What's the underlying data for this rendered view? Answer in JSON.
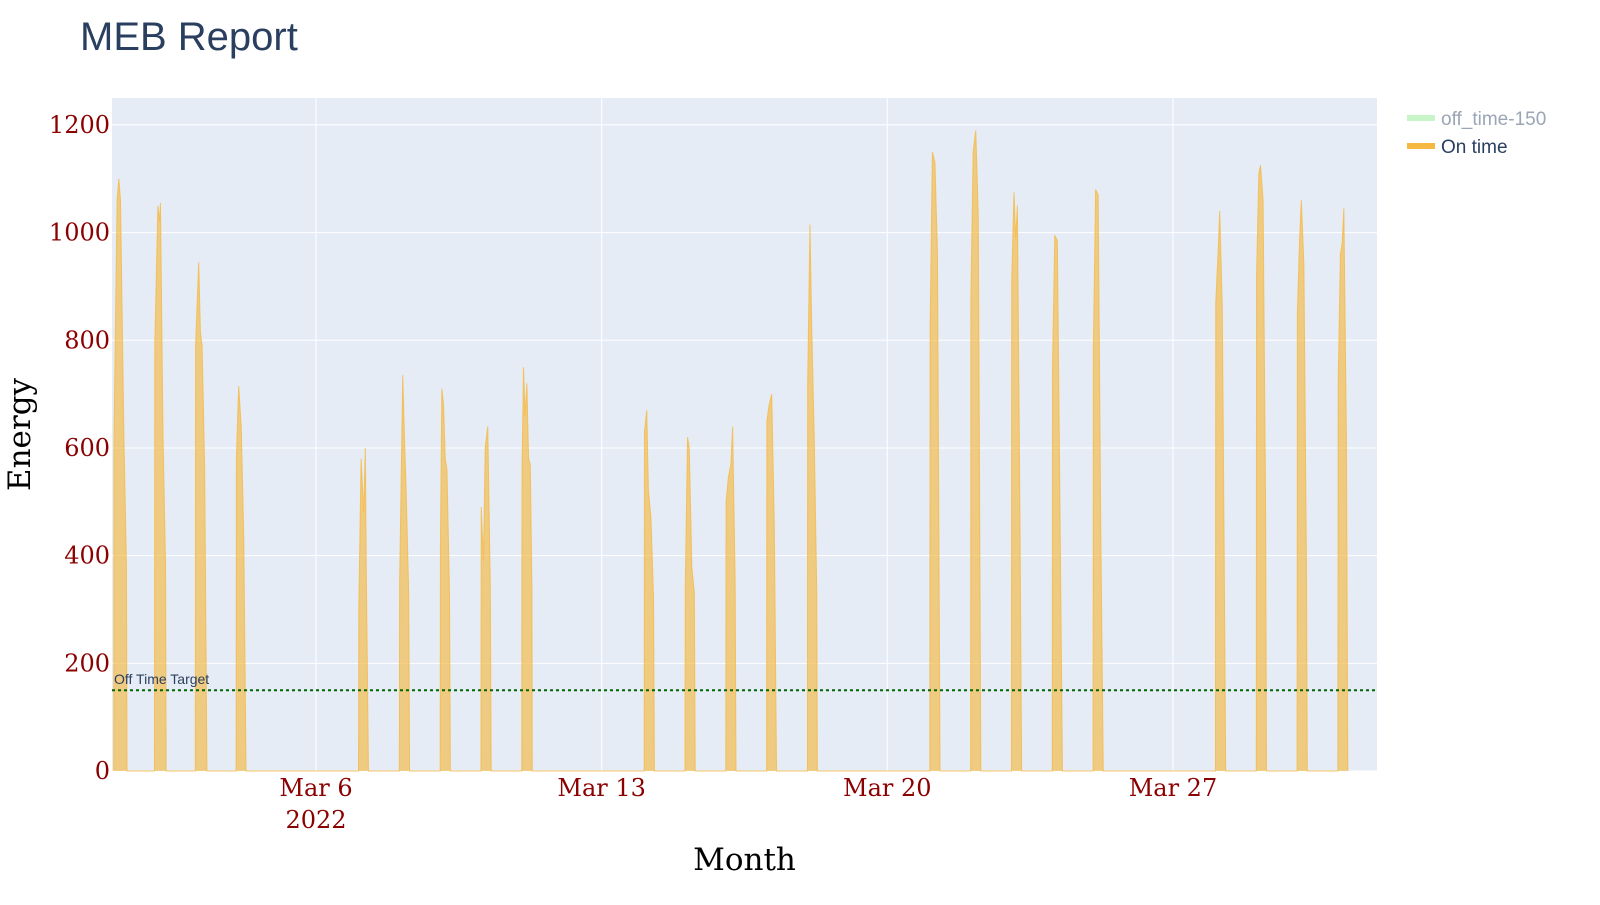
{
  "chart_data": {
    "type": "area",
    "title": "MEB Report",
    "xlabel": "Month",
    "ylabel": "Energy",
    "x_range": [
      "2022-03-01T00:00",
      "2022-04-01T00:00"
    ],
    "ylim": [
      0,
      1250
    ],
    "y_ticks": [
      0,
      200,
      400,
      600,
      800,
      1000,
      1200
    ],
    "x_ticks": [
      {
        "date": "2022-03-06",
        "label": "Mar 6",
        "sublabel": "2022"
      },
      {
        "date": "2022-03-13",
        "label": "Mar 13",
        "sublabel": ""
      },
      {
        "date": "2022-03-20",
        "label": "Mar 20",
        "sublabel": ""
      },
      {
        "date": "2022-03-27",
        "label": "Mar 27",
        "sublabel": ""
      }
    ],
    "grid": true,
    "legend_position": "top-right",
    "series": [
      {
        "name": "off_time-150",
        "color": "#c8f5c8",
        "legend_only": true,
        "values": []
      },
      {
        "name": "On time",
        "color": "#f5b942",
        "points": [
          [
            "2022-03-01T01:00",
            0
          ],
          [
            "2022-03-01T01:10",
            620
          ],
          [
            "2022-03-01T03:00",
            1060
          ],
          [
            "2022-03-01T04:00",
            1100
          ],
          [
            "2022-03-01T05:00",
            1060
          ],
          [
            "2022-03-01T07:00",
            620
          ],
          [
            "2022-03-01T08:30",
            380
          ],
          [
            "2022-03-01T08:50",
            0
          ],
          [
            "2022-03-02T01:00",
            0
          ],
          [
            "2022-03-02T01:10",
            790
          ],
          [
            "2022-03-02T03:00",
            1050
          ],
          [
            "2022-03-02T04:00",
            1020
          ],
          [
            "2022-03-02T04:30",
            1055
          ],
          [
            "2022-03-02T06:00",
            620
          ],
          [
            "2022-03-02T07:30",
            380
          ],
          [
            "2022-03-02T07:50",
            0
          ],
          [
            "2022-03-03T01:00",
            0
          ],
          [
            "2022-03-03T01:10",
            790
          ],
          [
            "2022-03-03T03:00",
            945
          ],
          [
            "2022-03-03T04:00",
            815
          ],
          [
            "2022-03-03T05:00",
            790
          ],
          [
            "2022-03-03T06:30",
            560
          ],
          [
            "2022-03-03T07:50",
            0
          ],
          [
            "2022-03-04T01:00",
            0
          ],
          [
            "2022-03-04T01:10",
            580
          ],
          [
            "2022-03-04T02:30",
            715
          ],
          [
            "2022-03-04T04:00",
            640
          ],
          [
            "2022-03-04T05:30",
            430
          ],
          [
            "2022-03-04T06:50",
            0
          ],
          [
            "2022-03-07T01:00",
            0
          ],
          [
            "2022-03-07T01:10",
            300
          ],
          [
            "2022-03-07T02:30",
            580
          ],
          [
            "2022-03-07T04:00",
            480
          ],
          [
            "2022-03-07T05:00",
            600
          ],
          [
            "2022-03-07T05:30",
            390
          ],
          [
            "2022-03-07T06:50",
            0
          ],
          [
            "2022-03-08T01:00",
            0
          ],
          [
            "2022-03-08T01:10",
            350
          ],
          [
            "2022-03-08T03:00",
            735
          ],
          [
            "2022-03-08T04:00",
            620
          ],
          [
            "2022-03-08T05:00",
            520
          ],
          [
            "2022-03-08T06:30",
            330
          ],
          [
            "2022-03-08T07:00",
            0
          ],
          [
            "2022-03-09T01:00",
            0
          ],
          [
            "2022-03-09T01:10",
            420
          ],
          [
            "2022-03-09T02:00",
            710
          ],
          [
            "2022-03-09T03:00",
            680
          ],
          [
            "2022-03-09T04:00",
            580
          ],
          [
            "2022-03-09T05:00",
            560
          ],
          [
            "2022-03-09T06:30",
            330
          ],
          [
            "2022-03-09T07:00",
            0
          ],
          [
            "2022-03-10T01:00",
            0
          ],
          [
            "2022-03-10T01:10",
            490
          ],
          [
            "2022-03-10T02:30",
            390
          ],
          [
            "2022-03-10T03:30",
            600
          ],
          [
            "2022-03-10T05:00",
            640
          ],
          [
            "2022-03-10T06:30",
            340
          ],
          [
            "2022-03-10T07:00",
            0
          ],
          [
            "2022-03-11T01:00",
            0
          ],
          [
            "2022-03-11T01:10",
            560
          ],
          [
            "2022-03-11T02:00",
            750
          ],
          [
            "2022-03-11T03:00",
            660
          ],
          [
            "2022-03-11T04:00",
            720
          ],
          [
            "2022-03-11T05:00",
            580
          ],
          [
            "2022-03-11T06:00",
            570
          ],
          [
            "2022-03-11T07:00",
            330
          ],
          [
            "2022-03-11T07:10",
            0
          ],
          [
            "2022-03-14T01:00",
            0
          ],
          [
            "2022-03-14T01:10",
            630
          ],
          [
            "2022-03-14T02:30",
            670
          ],
          [
            "2022-03-14T03:30",
            520
          ],
          [
            "2022-03-14T05:00",
            470
          ],
          [
            "2022-03-14T06:30",
            320
          ],
          [
            "2022-03-14T07:00",
            0
          ],
          [
            "2022-03-15T01:00",
            0
          ],
          [
            "2022-03-15T01:10",
            340
          ],
          [
            "2022-03-15T02:30",
            620
          ],
          [
            "2022-03-15T03:30",
            600
          ],
          [
            "2022-03-15T05:00",
            380
          ],
          [
            "2022-03-15T06:30",
            330
          ],
          [
            "2022-03-15T07:00",
            0
          ],
          [
            "2022-03-16T01:00",
            0
          ],
          [
            "2022-03-16T01:10",
            500
          ],
          [
            "2022-03-16T02:30",
            545
          ],
          [
            "2022-03-16T04:00",
            570
          ],
          [
            "2022-03-16T05:00",
            640
          ],
          [
            "2022-03-16T06:30",
            350
          ],
          [
            "2022-03-16T07:00",
            0
          ],
          [
            "2022-03-17T01:00",
            0
          ],
          [
            "2022-03-17T01:10",
            650
          ],
          [
            "2022-03-17T02:30",
            680
          ],
          [
            "2022-03-17T04:00",
            700
          ],
          [
            "2022-03-17T05:30",
            460
          ],
          [
            "2022-03-17T06:50",
            0
          ],
          [
            "2022-03-18T01:00",
            0
          ],
          [
            "2022-03-18T01:10",
            720
          ],
          [
            "2022-03-18T02:30",
            1015
          ],
          [
            "2022-03-18T03:30",
            830
          ],
          [
            "2022-03-18T05:00",
            620
          ],
          [
            "2022-03-18T06:30",
            330
          ],
          [
            "2022-03-18T06:50",
            0
          ],
          [
            "2022-03-21T01:00",
            0
          ],
          [
            "2022-03-21T01:10",
            820
          ],
          [
            "2022-03-21T02:30",
            1150
          ],
          [
            "2022-03-21T04:00",
            1130
          ],
          [
            "2022-03-21T05:30",
            960
          ],
          [
            "2022-03-21T07:00",
            0
          ],
          [
            "2022-03-22T01:00",
            0
          ],
          [
            "2022-03-22T01:10",
            880
          ],
          [
            "2022-03-22T02:30",
            1150
          ],
          [
            "2022-03-22T04:00",
            1190
          ],
          [
            "2022-03-22T05:30",
            1030
          ],
          [
            "2022-03-22T07:00",
            0
          ],
          [
            "2022-03-23T01:00",
            0
          ],
          [
            "2022-03-23T01:10",
            910
          ],
          [
            "2022-03-23T02:30",
            1075
          ],
          [
            "2022-03-23T03:30",
            990
          ],
          [
            "2022-03-23T04:30",
            1050
          ],
          [
            "2022-03-23T06:00",
            470
          ],
          [
            "2022-03-23T07:00",
            0
          ],
          [
            "2022-03-24T01:00",
            0
          ],
          [
            "2022-03-24T01:10",
            750
          ],
          [
            "2022-03-24T02:30",
            995
          ],
          [
            "2022-03-24T04:00",
            985
          ],
          [
            "2022-03-24T05:30",
            500
          ],
          [
            "2022-03-24T07:00",
            0
          ],
          [
            "2022-03-25T01:00",
            0
          ],
          [
            "2022-03-25T01:10",
            780
          ],
          [
            "2022-03-25T02:30",
            1080
          ],
          [
            "2022-03-25T04:00",
            1070
          ],
          [
            "2022-03-25T05:30",
            460
          ],
          [
            "2022-03-25T07:00",
            0
          ],
          [
            "2022-03-28T01:00",
            0
          ],
          [
            "2022-03-28T01:10",
            870
          ],
          [
            "2022-03-28T02:30",
            960
          ],
          [
            "2022-03-28T03:30",
            1040
          ],
          [
            "2022-03-28T05:00",
            860
          ],
          [
            "2022-03-28T06:00",
            450
          ],
          [
            "2022-03-28T07:00",
            0
          ],
          [
            "2022-03-29T01:00",
            0
          ],
          [
            "2022-03-29T01:10",
            920
          ],
          [
            "2022-03-29T02:30",
            1110
          ],
          [
            "2022-03-29T03:30",
            1125
          ],
          [
            "2022-03-29T05:00",
            1060
          ],
          [
            "2022-03-29T06:30",
            480
          ],
          [
            "2022-03-29T07:00",
            0
          ],
          [
            "2022-03-30T01:00",
            0
          ],
          [
            "2022-03-30T01:10",
            850
          ],
          [
            "2022-03-30T02:30",
            990
          ],
          [
            "2022-03-30T03:30",
            1060
          ],
          [
            "2022-03-30T05:00",
            940
          ],
          [
            "2022-03-30T06:30",
            380
          ],
          [
            "2022-03-30T07:00",
            0
          ],
          [
            "2022-03-31T01:00",
            0
          ],
          [
            "2022-03-31T01:10",
            720
          ],
          [
            "2022-03-31T02:30",
            960
          ],
          [
            "2022-03-31T03:30",
            980
          ],
          [
            "2022-03-31T04:30",
            1045
          ],
          [
            "2022-03-31T06:00",
            620
          ],
          [
            "2022-03-31T06:50",
            0
          ]
        ]
      }
    ],
    "reference_line": {
      "y": 150,
      "label": "Off Time Target",
      "color": "#006400"
    }
  }
}
